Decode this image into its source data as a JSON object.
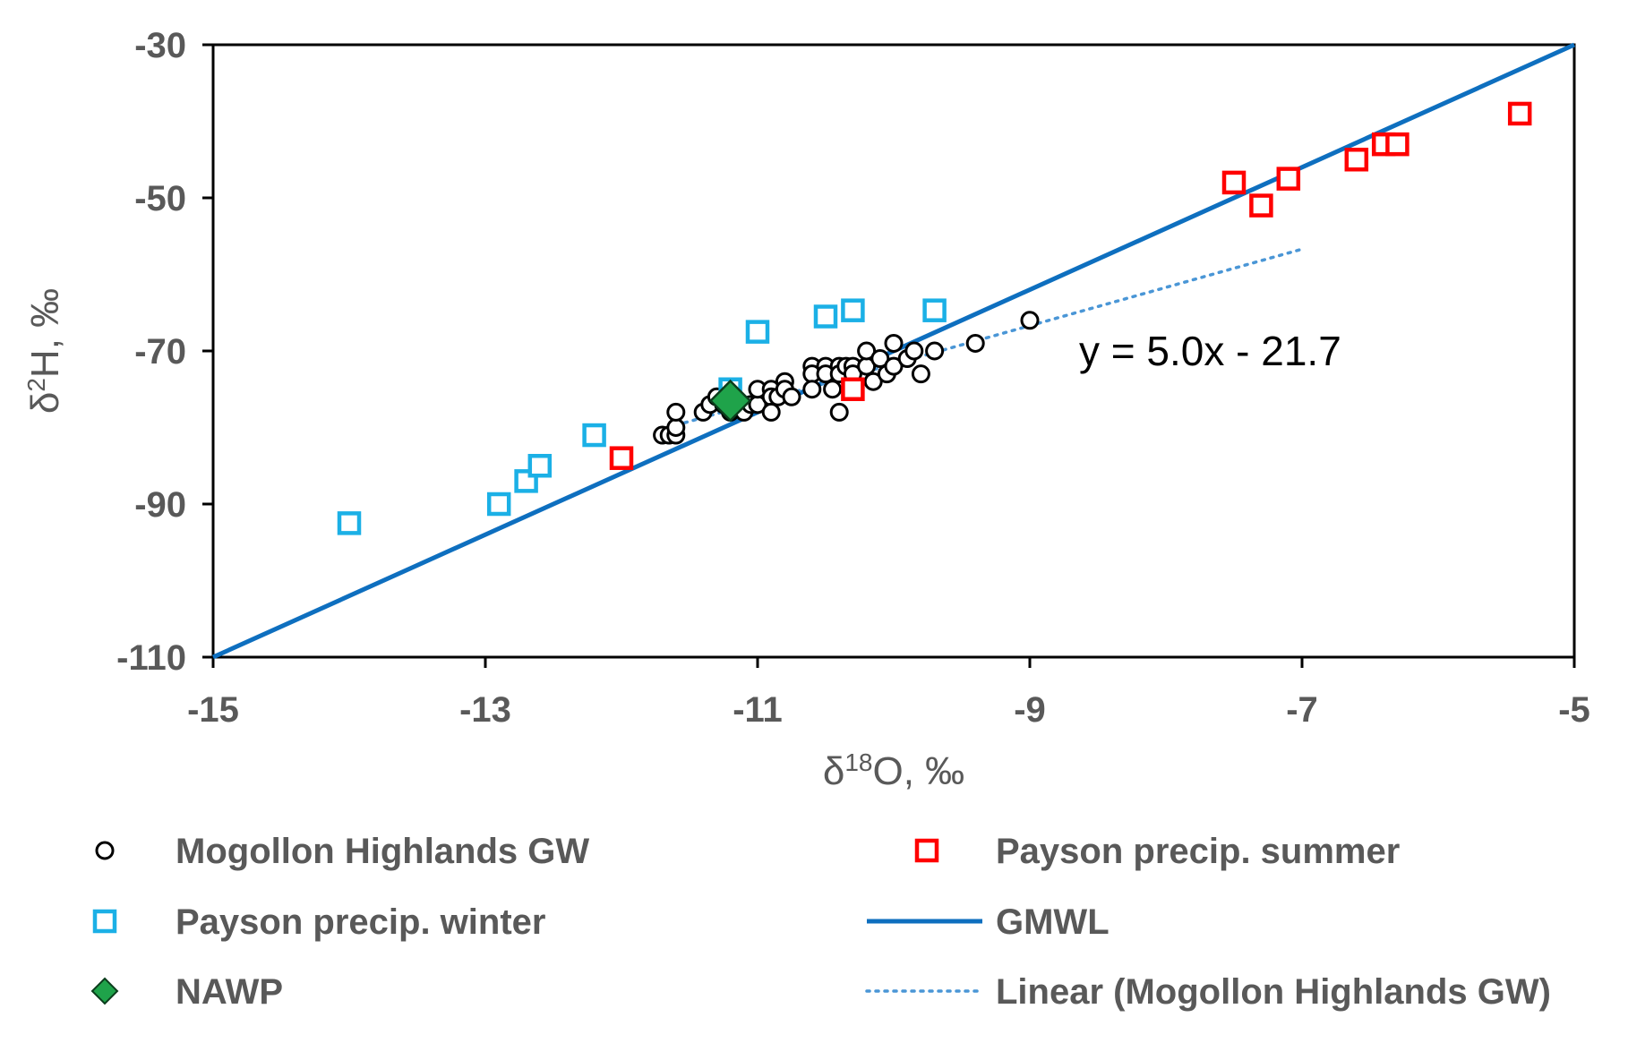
{
  "chart_data": {
    "type": "scatter",
    "xlabel_main": "δ",
    "xlabel_sup": "18",
    "xlabel_rest": "O, ‰",
    "ylabel_main": "δ",
    "ylabel_sup": "2",
    "ylabel_rest": "H, ‰",
    "xlim": [
      -15,
      -5
    ],
    "ylim": [
      -110,
      -30
    ],
    "x_ticks": [
      -15,
      -13,
      -11,
      -9,
      -7,
      -5
    ],
    "y_ticks": [
      -30,
      -50,
      -70,
      -90,
      -110
    ],
    "annotation": "y = 5.0x - 21.7",
    "series": [
      {
        "name": "Mogollon Highlands GW",
        "marker": "circle",
        "color": "#000000",
        "points": [
          [
            -11.7,
            -81
          ],
          [
            -11.65,
            -81
          ],
          [
            -11.6,
            -81
          ],
          [
            -11.6,
            -80
          ],
          [
            -11.6,
            -78
          ],
          [
            -11.4,
            -78
          ],
          [
            -11.35,
            -77
          ],
          [
            -11.3,
            -76
          ],
          [
            -11.25,
            -77
          ],
          [
            -11.2,
            -78
          ],
          [
            -11.1,
            -78
          ],
          [
            -11.05,
            -77
          ],
          [
            -11.0,
            -77
          ],
          [
            -11.0,
            -75
          ],
          [
            -10.9,
            -75
          ],
          [
            -10.9,
            -76
          ],
          [
            -10.9,
            -78
          ],
          [
            -10.85,
            -76
          ],
          [
            -10.8,
            -74
          ],
          [
            -10.8,
            -75
          ],
          [
            -10.75,
            -76
          ],
          [
            -10.6,
            -72
          ],
          [
            -10.6,
            -73
          ],
          [
            -10.6,
            -75
          ],
          [
            -10.5,
            -72
          ],
          [
            -10.5,
            -73
          ],
          [
            -10.45,
            -75
          ],
          [
            -10.4,
            -72
          ],
          [
            -10.4,
            -73
          ],
          [
            -10.35,
            -72
          ],
          [
            -10.3,
            -72
          ],
          [
            -10.3,
            -73
          ],
          [
            -10.4,
            -78
          ],
          [
            -10.2,
            -72
          ],
          [
            -10.2,
            -70
          ],
          [
            -10.15,
            -74
          ],
          [
            -10.1,
            -71
          ],
          [
            -10.05,
            -73
          ],
          [
            -10.0,
            -72
          ],
          [
            -10.0,
            -69
          ],
          [
            -9.9,
            -71
          ],
          [
            -9.85,
            -70
          ],
          [
            -9.8,
            -73
          ],
          [
            -9.7,
            -70
          ],
          [
            -9.4,
            -69
          ],
          [
            -9.0,
            -66
          ]
        ]
      },
      {
        "name": "Payson precip. winter",
        "marker": "square",
        "color": "#1BB0E6",
        "points": [
          [
            -14.0,
            -92.5
          ],
          [
            -12.9,
            -90
          ],
          [
            -12.7,
            -87
          ],
          [
            -12.6,
            -85
          ],
          [
            -12.2,
            -81
          ],
          [
            -11.2,
            -75
          ],
          [
            -11.0,
            -67.5
          ],
          [
            -10.5,
            -65.5
          ],
          [
            -10.3,
            -64.7
          ],
          [
            -9.7,
            -64.7
          ]
        ]
      },
      {
        "name": "Payson precip. summer",
        "marker": "square",
        "color": "#FF0000",
        "points": [
          [
            -12.0,
            -84
          ],
          [
            -10.3,
            -75
          ],
          [
            -7.5,
            -48
          ],
          [
            -7.3,
            -51
          ],
          [
            -7.1,
            -47.5
          ],
          [
            -6.6,
            -45
          ],
          [
            -6.4,
            -43
          ],
          [
            -6.3,
            -43
          ],
          [
            -5.4,
            -39
          ]
        ]
      },
      {
        "name": "NAWP",
        "marker": "diamond",
        "color": "#1FA34A",
        "points": [
          [
            -11.2,
            -76.5
          ]
        ]
      },
      {
        "name": "GMWL",
        "marker": "line",
        "color": "#0E6FBF",
        "points": [
          [
            -15,
            -110
          ],
          [
            -5,
            -30
          ]
        ]
      },
      {
        "name": "Linear (Mogollon Highlands GW)",
        "marker": "dotted-line",
        "color": "#4A96D6",
        "points": [
          [
            -11.6,
            -79.7
          ],
          [
            -7.0,
            -56.7
          ]
        ]
      }
    ],
    "legend": [
      {
        "label": "Mogollon Highlands GW",
        "marker": "circle",
        "color": "#000000"
      },
      {
        "label": "Payson precip. summer",
        "marker": "square",
        "color": "#FF0000"
      },
      {
        "label": "Payson precip. winter",
        "marker": "square",
        "color": "#1BB0E6"
      },
      {
        "label": "GMWL",
        "marker": "line",
        "color": "#0E6FBF"
      },
      {
        "label": "NAWP",
        "marker": "diamond",
        "color": "#1FA34A"
      },
      {
        "label": "Linear (Mogollon Highlands GW)",
        "marker": "dotted-line",
        "color": "#4A96D6"
      }
    ]
  }
}
